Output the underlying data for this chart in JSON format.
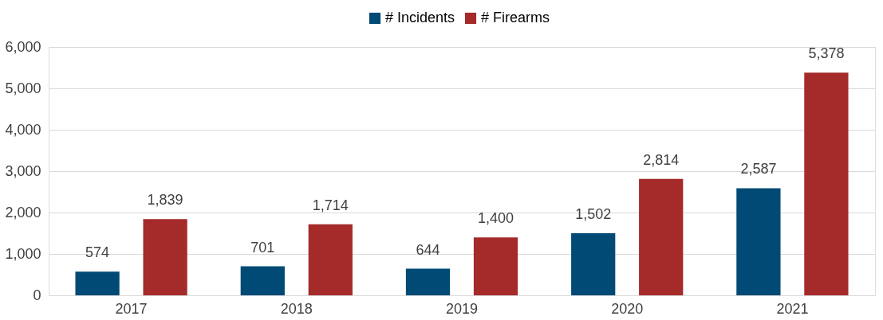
{
  "chart_data": {
    "type": "bar",
    "categories": [
      "2017",
      "2018",
      "2019",
      "2020",
      "2021"
    ],
    "series": [
      {
        "name": "# Incidents",
        "color": "#004a75",
        "values": [
          574,
          701,
          644,
          1502,
          2587
        ],
        "value_labels": [
          "574",
          "701",
          "644",
          "1,502",
          "2,587"
        ]
      },
      {
        "name": "# Firearms",
        "color": "#a52a2a",
        "values": [
          1839,
          1714,
          1400,
          2814,
          5378
        ],
        "value_labels": [
          "1,839",
          "1,714",
          "1,400",
          "2,814",
          "5,378"
        ]
      }
    ],
    "ylim": [
      0,
      6000
    ],
    "yticks": [
      {
        "value": 0,
        "label": "0"
      },
      {
        "value": 1000,
        "label": "1,000"
      },
      {
        "value": 2000,
        "label": "2,000"
      },
      {
        "value": 3000,
        "label": "3,000"
      },
      {
        "value": 4000,
        "label": "4,000"
      },
      {
        "value": 5000,
        "label": "5,000"
      },
      {
        "value": 6000,
        "label": "6,000"
      }
    ],
    "grid": "y",
    "legend": "top"
  }
}
